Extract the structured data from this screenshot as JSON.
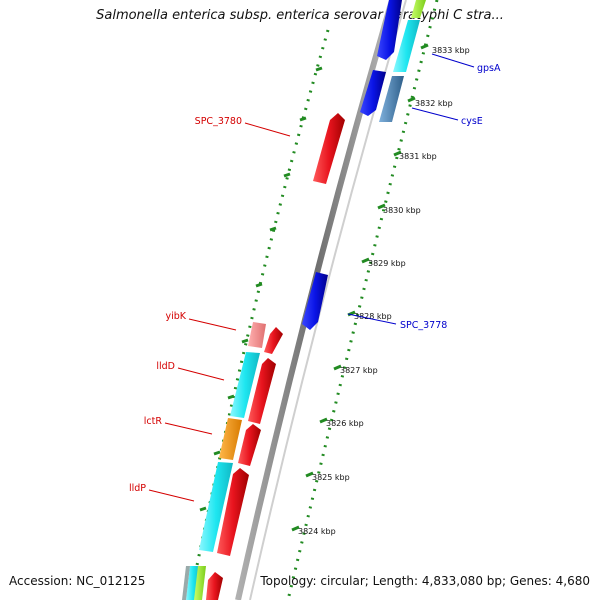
{
  "title": "Salmonella enterica subsp. enterica serovar Paratyphi C stra...",
  "footer": {
    "accession": "Accession: NC_012125",
    "summary": "Topology: circular; Length: 4,833,080 bp; Genes: 4,680"
  },
  "ticks": [
    "3833 kbp",
    "3832 kbp",
    "3831 kbp",
    "3830 kbp",
    "3829 kbp",
    "3828 kbp",
    "3827 kbp",
    "3826 kbp",
    "3825 kbp",
    "3824 kbp"
  ],
  "gene_labels": {
    "gpsA": "gpsA",
    "cysE": "cysE",
    "spc3778": "SPC_3778",
    "spc3780": "SPC_3780",
    "yibK": "yibK",
    "lldD": "lldD",
    "lctR": "lctR",
    "lldP": "lldP"
  },
  "colors": {
    "reverse_genes": "#e8141e",
    "forward_genes": "#0a14e6",
    "cds_band": "#1ee6f0",
    "orange_band": "#f59614",
    "pink_band": "#f08c8c",
    "steel_band": "#4682b4",
    "tick_dots": "#228b22",
    "backbone": "#8a8a8a",
    "label_red": "#d40000",
    "label_blue": "#0000cc"
  }
}
